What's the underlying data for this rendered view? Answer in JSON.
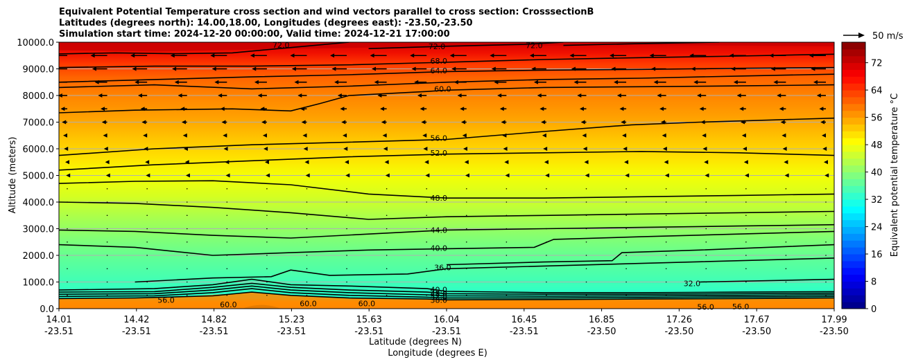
{
  "chart_data": {
    "type": "heatmap",
    "title_lines": [
      "Equivalent Potential Temperature cross section and wind vectors parallel to cross section: CrosssectionB",
      "Latitudes (degrees north): 14.00,18.00, Longitudes (degrees east): -23.50,-23.50",
      "Simulation start time: 2024-12-20 00:00:00, Valid time: 2024-12-21 17:00:00"
    ],
    "xlabel_lat": "Latitude (degrees N)",
    "xlabel_lon": "Longitude (degrees E)",
    "ylabel": "Altitude (meters)",
    "x_ticks_lat": [
      "14.01",
      "14.42",
      "14.82",
      "15.23",
      "15.63",
      "16.04",
      "16.45",
      "16.85",
      "17.26",
      "17.67",
      "17.99"
    ],
    "x_ticks_lon": [
      "-23.51",
      "-23.51",
      "-23.51",
      "-23.51",
      "-23.51",
      "-23.51",
      "-23.51",
      "-23.50",
      "-23.50",
      "-23.50",
      "-23.50"
    ],
    "xlim": [
      14.01,
      17.99
    ],
    "y_ticks": [
      "0.0",
      "1000.0",
      "2000.0",
      "3000.0",
      "4000.0",
      "5000.0",
      "6000.0",
      "7000.0",
      "8000.0",
      "9000.0",
      "10000.0"
    ],
    "ylim": [
      0,
      10000
    ],
    "grid": "horizontal",
    "colorbar": {
      "label": "Equivalent potential temperature $^\\circ$C",
      "label_display": "Equivalent potential temperature °C",
      "ticks": [
        "0",
        "8",
        "16",
        "24",
        "32",
        "40",
        "48",
        "56",
        "64",
        "72"
      ],
      "range": [
        0,
        78
      ]
    },
    "quiver_key": {
      "label": "50 m/s"
    },
    "contour_labels": [
      {
        "text": "72.0",
        "x": 15.15,
        "y": 9900
      },
      {
        "text": "72.0",
        "x": 15.95,
        "y": 9850
      },
      {
        "text": "72.0",
        "x": 16.45,
        "y": 9880
      },
      {
        "text": "68.0",
        "x": 15.96,
        "y": 9300
      },
      {
        "text": "64.0",
        "x": 15.96,
        "y": 8940
      },
      {
        "text": "60.0",
        "x": 15.98,
        "y": 8250
      },
      {
        "text": "56.0",
        "x": 15.96,
        "y": 6400
      },
      {
        "text": "52.0",
        "x": 15.96,
        "y": 5850
      },
      {
        "text": "48.0",
        "x": 15.96,
        "y": 4150
      },
      {
        "text": "44.0",
        "x": 15.96,
        "y": 2950
      },
      {
        "text": "40.0",
        "x": 15.96,
        "y": 2270
      },
      {
        "text": "36.0",
        "x": 15.98,
        "y": 1550
      },
      {
        "text": "40.0",
        "x": 15.96,
        "y": 720
      },
      {
        "text": "48.0",
        "x": 15.96,
        "y": 560
      },
      {
        "text": "52.0",
        "x": 15.96,
        "y": 460
      },
      {
        "text": "38.0",
        "x": 15.96,
        "y": 330
      },
      {
        "text": "56.0",
        "x": 14.56,
        "y": 330
      },
      {
        "text": "60.0",
        "x": 14.88,
        "y": 150
      },
      {
        "text": "60.0",
        "x": 15.29,
        "y": 200
      },
      {
        "text": "60.0",
        "x": 15.59,
        "y": 200
      },
      {
        "text": "32.0",
        "x": 17.26,
        "y": 950
      },
      {
        "text": "56.0",
        "x": 17.33,
        "y": 60
      },
      {
        "text": "56.0",
        "x": 17.51,
        "y": 80
      }
    ],
    "contours": [
      {
        "level": 72,
        "points": [
          [
            14.01,
            9560
          ],
          [
            14.3,
            9600
          ],
          [
            14.6,
            9570
          ],
          [
            14.9,
            9600
          ],
          [
            15.2,
            9800
          ],
          [
            15.5,
            10000
          ]
        ]
      },
      {
        "level": 72,
        "points": [
          [
            15.6,
            9760
          ],
          [
            16.0,
            9850
          ],
          [
            16.4,
            9920
          ],
          [
            16.6,
            10000
          ]
        ]
      },
      {
        "level": 72,
        "points": [
          [
            16.6,
            9880
          ],
          [
            17.0,
            9950
          ],
          [
            17.4,
            10000
          ]
        ]
      },
      {
        "level": 68,
        "points": [
          [
            14.01,
            9050
          ],
          [
            14.5,
            9100
          ],
          [
            15.0,
            9100
          ],
          [
            15.5,
            9150
          ],
          [
            16.0,
            9250
          ],
          [
            16.5,
            9350
          ],
          [
            17.0,
            9420
          ],
          [
            17.5,
            9480
          ],
          [
            17.99,
            9550
          ]
        ]
      },
      {
        "level": 64,
        "points": [
          [
            14.01,
            8500
          ],
          [
            14.5,
            8600
          ],
          [
            15.0,
            8700
          ],
          [
            15.5,
            8780
          ],
          [
            16.0,
            8900
          ],
          [
            16.5,
            8950
          ],
          [
            17.0,
            8980
          ],
          [
            17.5,
            9020
          ],
          [
            17.99,
            9050
          ]
        ]
      },
      {
        "level": 60,
        "points": [
          [
            14.01,
            8300
          ],
          [
            14.5,
            8400
          ],
          [
            15.0,
            8250
          ],
          [
            15.5,
            8350
          ],
          [
            16.0,
            8500
          ],
          [
            16.5,
            8600
          ],
          [
            17.0,
            8650
          ],
          [
            17.5,
            8730
          ],
          [
            17.99,
            8800
          ]
        ]
      },
      {
        "level": 58,
        "points": [
          [
            14.01,
            7350
          ],
          [
            14.4,
            7450
          ],
          [
            14.9,
            7500
          ],
          [
            15.2,
            7420
          ],
          [
            15.35,
            7700
          ],
          [
            15.5,
            8000
          ],
          [
            15.9,
            8150
          ],
          [
            16.0,
            8200
          ],
          [
            16.5,
            8300
          ],
          [
            17.0,
            8330
          ],
          [
            17.5,
            8360
          ],
          [
            17.99,
            8400
          ]
        ]
      },
      {
        "level": 56,
        "points": [
          [
            14.01,
            5750
          ],
          [
            14.5,
            6000
          ],
          [
            15.0,
            6150
          ],
          [
            15.5,
            6250
          ],
          [
            16.0,
            6350
          ],
          [
            16.5,
            6650
          ],
          [
            16.95,
            6900
          ],
          [
            17.3,
            7000
          ],
          [
            17.99,
            7150
          ]
        ]
      },
      {
        "level": 52,
        "points": [
          [
            14.01,
            5200
          ],
          [
            14.5,
            5400
          ],
          [
            15.0,
            5550
          ],
          [
            15.5,
            5700
          ],
          [
            16.0,
            5800
          ],
          [
            16.5,
            5850
          ],
          [
            17.0,
            5900
          ],
          [
            17.5,
            5850
          ],
          [
            17.99,
            5750
          ]
        ]
      },
      {
        "level": 48,
        "points": [
          [
            14.01,
            4700
          ],
          [
            14.4,
            4780
          ],
          [
            14.8,
            4800
          ],
          [
            15.2,
            4650
          ],
          [
            15.6,
            4300
          ],
          [
            16.0,
            4150
          ],
          [
            16.5,
            4150
          ],
          [
            17.0,
            4200
          ],
          [
            17.5,
            4250
          ],
          [
            17.99,
            4300
          ]
        ]
      },
      {
        "level": 46,
        "points": [
          [
            14.01,
            4000
          ],
          [
            14.4,
            3950
          ],
          [
            14.8,
            3800
          ],
          [
            15.2,
            3600
          ],
          [
            15.6,
            3350
          ],
          [
            16.0,
            3450
          ],
          [
            16.5,
            3500
          ],
          [
            17.0,
            3550
          ],
          [
            17.5,
            3600
          ],
          [
            17.99,
            3650
          ]
        ]
      },
      {
        "level": 44,
        "points": [
          [
            14.01,
            2950
          ],
          [
            14.4,
            2900
          ],
          [
            14.8,
            2750
          ],
          [
            15.2,
            2650
          ],
          [
            15.6,
            2800
          ],
          [
            16.0,
            2950
          ],
          [
            16.5,
            3000
          ],
          [
            17.0,
            3050
          ],
          [
            17.5,
            3100
          ],
          [
            17.99,
            3150
          ]
        ]
      },
      {
        "level": 40,
        "points": [
          [
            14.01,
            2400
          ],
          [
            14.4,
            2300
          ],
          [
            14.8,
            2000
          ],
          [
            15.2,
            2100
          ],
          [
            15.6,
            2200
          ],
          [
            16.0,
            2250
          ],
          [
            16.45,
            2300
          ],
          [
            16.55,
            2600
          ],
          [
            17.0,
            2700
          ],
          [
            17.5,
            2800
          ],
          [
            17.99,
            2900
          ]
        ]
      },
      {
        "level": 38,
        "points": [
          [
            16.0,
            1650
          ],
          [
            16.5,
            1750
          ],
          [
            16.85,
            1800
          ],
          [
            16.9,
            2100
          ],
          [
            17.3,
            2200
          ],
          [
            17.99,
            2400
          ]
        ]
      },
      {
        "level": 36,
        "points": [
          [
            14.4,
            1000
          ],
          [
            14.8,
            1150
          ],
          [
            15.1,
            1200
          ],
          [
            15.2,
            1450
          ],
          [
            15.4,
            1250
          ],
          [
            15.8,
            1300
          ],
          [
            16.0,
            1500
          ],
          [
            16.5,
            1600
          ],
          [
            17.0,
            1700
          ],
          [
            17.99,
            1900
          ]
        ]
      },
      {
        "level": 32,
        "points": [
          [
            17.3,
            1000
          ],
          [
            17.99,
            1100
          ]
        ]
      },
      {
        "level": 40,
        "points": [
          [
            14.01,
            700
          ],
          [
            14.5,
            750
          ],
          [
            14.8,
            900
          ],
          [
            15.0,
            1100
          ],
          [
            15.2,
            900
          ],
          [
            15.5,
            850
          ],
          [
            15.9,
            750
          ],
          [
            16.0,
            650
          ],
          [
            16.5,
            600
          ],
          [
            17.0,
            600
          ],
          [
            17.5,
            620
          ],
          [
            17.99,
            640
          ]
        ]
      },
      {
        "level": 44,
        "points": [
          [
            14.01,
            620
          ],
          [
            14.5,
            640
          ],
          [
            14.8,
            800
          ],
          [
            15.0,
            950
          ],
          [
            15.2,
            800
          ],
          [
            15.5,
            700
          ],
          [
            15.9,
            620
          ],
          [
            16.0,
            560
          ],
          [
            16.5,
            540
          ],
          [
            17.0,
            540
          ],
          [
            17.5,
            560
          ],
          [
            17.99,
            580
          ]
        ]
      },
      {
        "level": 48,
        "points": [
          [
            14.01,
            540
          ],
          [
            14.5,
            560
          ],
          [
            14.8,
            700
          ],
          [
            15.0,
            850
          ],
          [
            15.2,
            700
          ],
          [
            15.5,
            600
          ],
          [
            15.9,
            520
          ],
          [
            16.0,
            480
          ],
          [
            16.5,
            470
          ],
          [
            17.0,
            480
          ],
          [
            17.5,
            500
          ],
          [
            17.99,
            520
          ]
        ]
      },
      {
        "level": 52,
        "points": [
          [
            14.01,
            460
          ],
          [
            14.5,
            480
          ],
          [
            14.8,
            600
          ],
          [
            15.0,
            750
          ],
          [
            15.2,
            600
          ],
          [
            15.5,
            500
          ],
          [
            15.9,
            430
          ],
          [
            16.0,
            400
          ],
          [
            16.5,
            400
          ],
          [
            17.0,
            420
          ],
          [
            17.5,
            440
          ],
          [
            17.99,
            460
          ]
        ]
      },
      {
        "level": 56,
        "points": [
          [
            14.01,
            380
          ],
          [
            14.4,
            400
          ],
          [
            14.8,
            480
          ],
          [
            15.0,
            620
          ],
          [
            15.2,
            500
          ],
          [
            15.5,
            400
          ],
          [
            15.9,
            360
          ],
          [
            16.0,
            330
          ],
          [
            16.5,
            340
          ],
          [
            17.0,
            360
          ],
          [
            17.5,
            380
          ],
          [
            17.99,
            400
          ]
        ]
      }
    ],
    "wind_vectors": [
      {
        "y": 9500,
        "speed": 40
      },
      {
        "y": 9000,
        "speed": 36
      },
      {
        "y": 8500,
        "speed": 30
      },
      {
        "y": 8000,
        "speed": 22
      },
      {
        "y": 7500,
        "speed": 16
      },
      {
        "y": 7000,
        "speed": 13
      },
      {
        "y": 6500,
        "speed": 10
      },
      {
        "y": 6000,
        "speed": 8
      },
      {
        "y": 5500,
        "speed": 5
      },
      {
        "y": 5000,
        "speed": 3
      },
      {
        "y": 4500,
        "speed": 1
      },
      {
        "y": 4000,
        "speed": 0.5
      },
      {
        "y": 3500,
        "speed": 0.5
      },
      {
        "y": 3000,
        "speed": 0.5
      },
      {
        "y": 2500,
        "speed": 0.5
      },
      {
        "y": 2000,
        "speed": 0.5
      },
      {
        "y": 1500,
        "speed": 0.5
      },
      {
        "y": 1000,
        "speed": 0.5
      },
      {
        "y": 500,
        "speed": 0.5
      }
    ]
  }
}
